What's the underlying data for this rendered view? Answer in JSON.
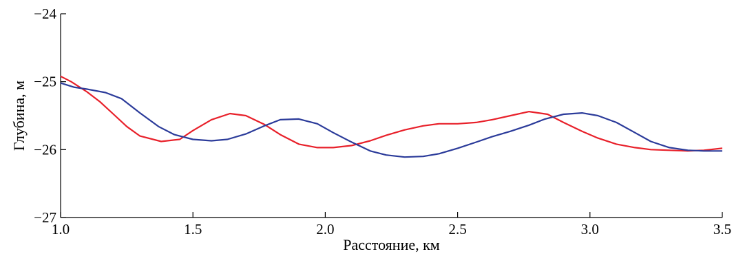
{
  "chart_data": {
    "type": "line",
    "xlabel": "Расстояние, км",
    "ylabel": "Глубина, м",
    "xlim": [
      1.0,
      3.5
    ],
    "ylim": [
      -27,
      -24
    ],
    "xticks": [
      "1.0",
      "1.5",
      "2.0",
      "2.5",
      "3.0",
      "3.5"
    ],
    "yticks": [
      "−24",
      "−25",
      "−26",
      "−27"
    ],
    "grid": false,
    "series": [
      {
        "color": "#e8202a",
        "x": [
          1.0,
          1.04,
          1.1,
          1.15,
          1.2,
          1.25,
          1.3,
          1.38,
          1.45,
          1.5,
          1.57,
          1.64,
          1.7,
          1.77,
          1.83,
          1.9,
          1.97,
          2.03,
          2.1,
          2.17,
          2.23,
          2.3,
          2.37,
          2.43,
          2.5,
          2.57,
          2.63,
          2.7,
          2.77,
          2.84,
          2.9,
          2.97,
          3.03,
          3.1,
          3.17,
          3.23,
          3.3,
          3.37,
          3.43,
          3.5
        ],
        "values": [
          -24.92,
          -25.0,
          -25.15,
          -25.3,
          -25.48,
          -25.66,
          -25.8,
          -25.88,
          -25.85,
          -25.72,
          -25.56,
          -25.47,
          -25.5,
          -25.63,
          -25.78,
          -25.92,
          -25.97,
          -25.97,
          -25.94,
          -25.87,
          -25.79,
          -25.71,
          -25.65,
          -25.62,
          -25.62,
          -25.6,
          -25.56,
          -25.5,
          -25.44,
          -25.48,
          -25.6,
          -25.73,
          -25.83,
          -25.92,
          -25.97,
          -26.0,
          -26.01,
          -26.02,
          -26.01,
          -25.98
        ]
      },
      {
        "color": "#2b3b9a",
        "x": [
          1.0,
          1.05,
          1.1,
          1.17,
          1.23,
          1.3,
          1.37,
          1.43,
          1.5,
          1.57,
          1.63,
          1.7,
          1.77,
          1.83,
          1.9,
          1.97,
          2.03,
          2.1,
          2.17,
          2.23,
          2.3,
          2.37,
          2.43,
          2.5,
          2.57,
          2.63,
          2.7,
          2.77,
          2.83,
          2.9,
          2.97,
          3.03,
          3.1,
          3.17,
          3.23,
          3.3,
          3.37,
          3.43,
          3.5
        ],
        "values": [
          -25.02,
          -25.08,
          -25.11,
          -25.16,
          -25.25,
          -25.46,
          -25.66,
          -25.78,
          -25.85,
          -25.87,
          -25.85,
          -25.77,
          -25.65,
          -25.56,
          -25.55,
          -25.62,
          -25.75,
          -25.89,
          -26.02,
          -26.08,
          -26.11,
          -26.1,
          -26.06,
          -25.98,
          -25.89,
          -25.81,
          -25.73,
          -25.64,
          -25.55,
          -25.48,
          -25.46,
          -25.5,
          -25.6,
          -25.75,
          -25.88,
          -25.97,
          -26.01,
          -26.02,
          -26.02
        ]
      }
    ]
  }
}
